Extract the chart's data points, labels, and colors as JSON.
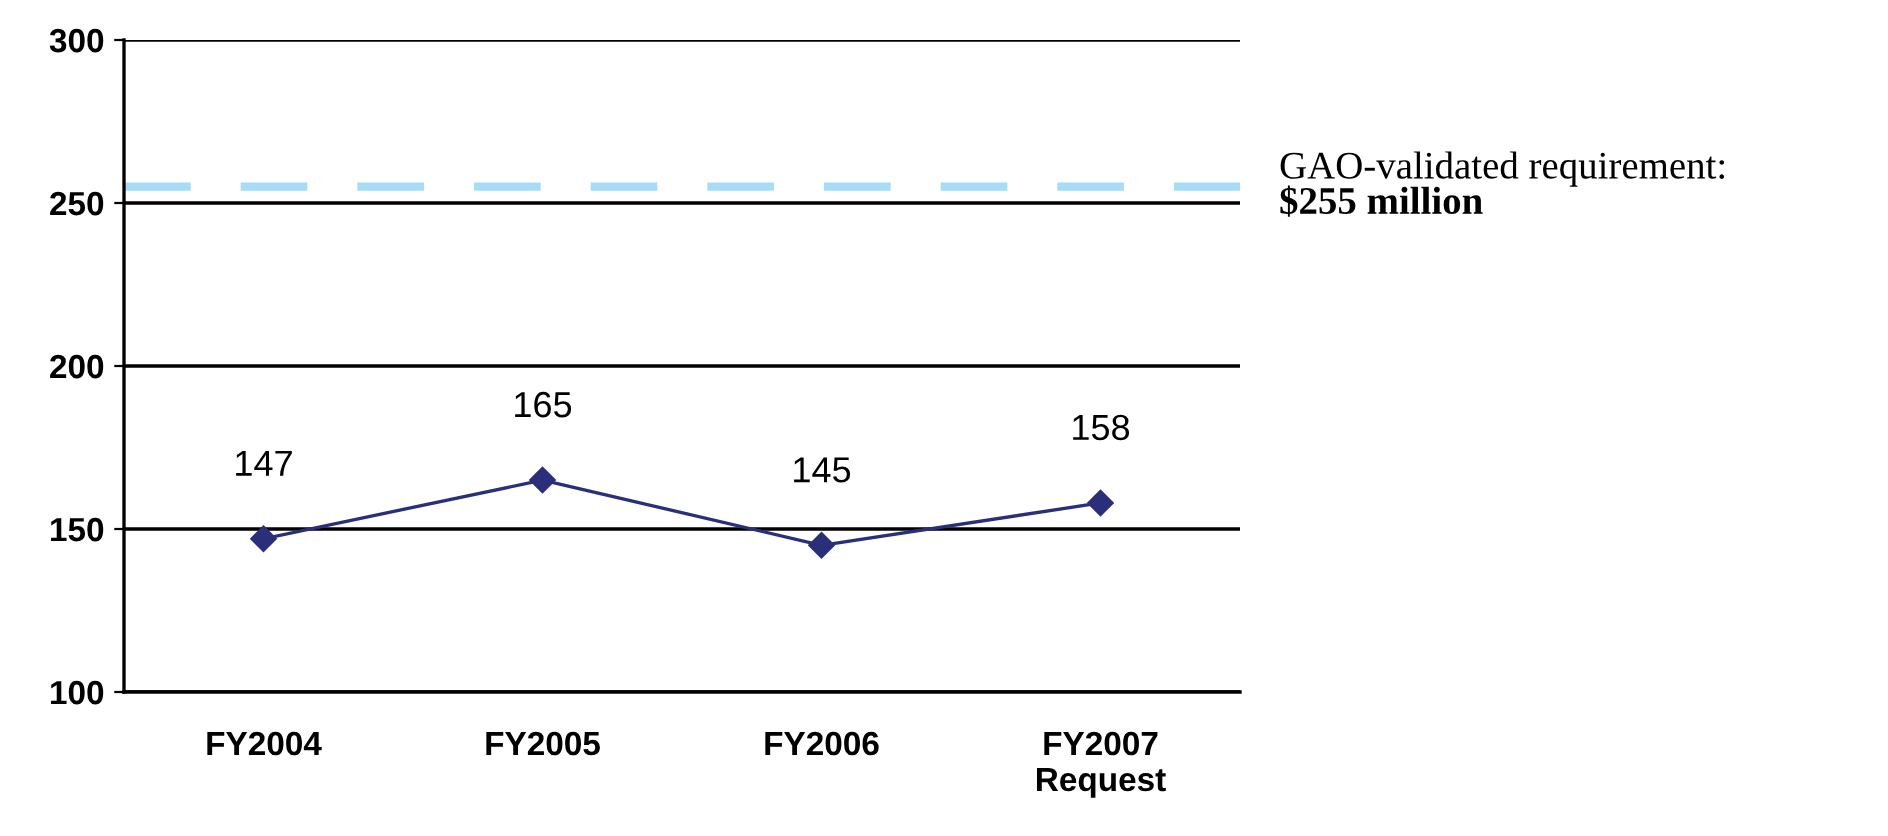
{
  "chart_data": {
    "type": "line",
    "categories": [
      "FY2004",
      "FY2005",
      "FY2006",
      "FY2007\nRequest"
    ],
    "series": [
      {
        "color": "#2b2f7a",
        "values": [
          147,
          165,
          145,
          158
        ]
      }
    ],
    "ylim": [
      100,
      300
    ],
    "yticks": [
      100,
      150,
      200,
      250,
      300
    ],
    "grid": "y",
    "marker": "diamond",
    "line_style": "solid",
    "data_labels": true,
    "legend": false,
    "ref_lines": [
      {
        "axis": "y",
        "value": 255,
        "label": "GAO-validated requirement:\n$255 million",
        "color": "#a6dcf5",
        "line_style": "dashed"
      }
    ]
  }
}
